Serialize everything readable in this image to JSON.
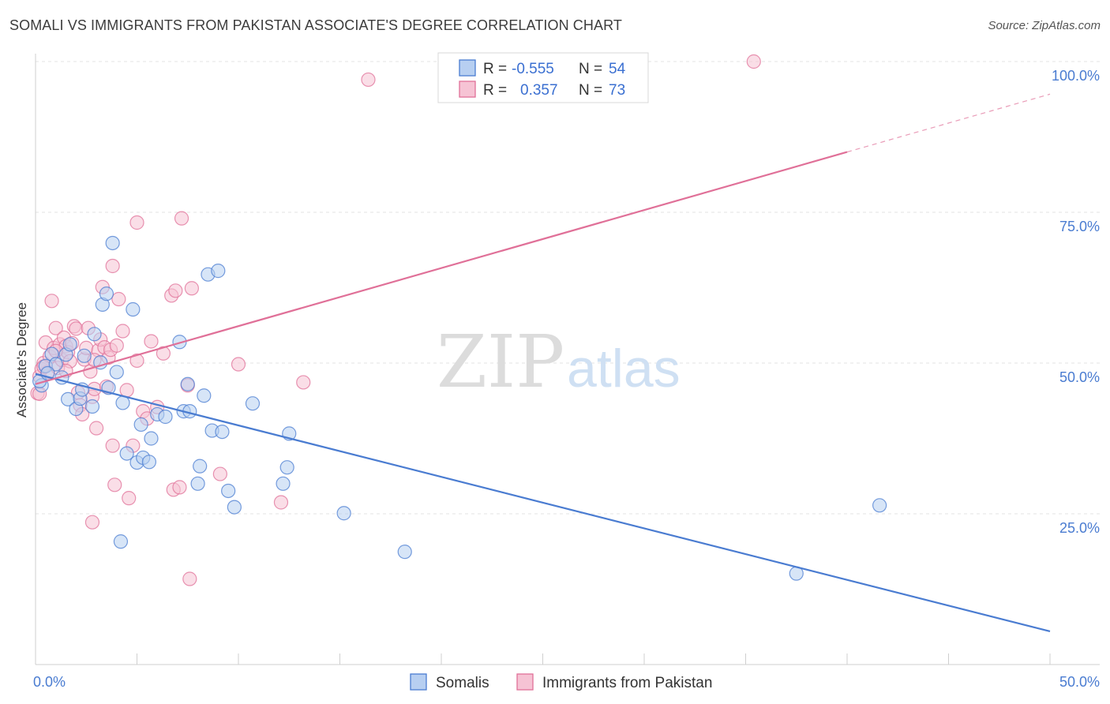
{
  "title": "SOMALI VS IMMIGRANTS FROM PAKISTAN ASSOCIATE'S DEGREE CORRELATION CHART",
  "source": "Source: ZipAtlas.com",
  "watermark": {
    "zip": "ZIP",
    "atlas": "atlas"
  },
  "colors": {
    "blue": "#4a7cd1",
    "pink": "#e07098",
    "blue_fill": "#b7cff1",
    "pink_fill": "#f6c3d4"
  },
  "legend": {
    "rows": [
      {
        "r_label": "R =",
        "r_value": "-0.555",
        "n_label": "N =",
        "n_value": "54"
      },
      {
        "r_label": "R =",
        "r_value": "0.357",
        "n_label": "N =",
        "n_value": "73"
      }
    ]
  },
  "bottom_legend": [
    "Somalis",
    "Immigrants from Pakistan"
  ],
  "chart_data": {
    "type": "scatter",
    "title": "SOMALI VS IMMIGRANTS FROM PAKISTAN ASSOCIATE'S DEGREE CORRELATION CHART",
    "xlabel": "",
    "ylabel": "Associate's Degree",
    "xlim": [
      0,
      50
    ],
    "ylim": [
      0,
      100
    ],
    "x_tick_labels": [
      "0.0%",
      "50.0%"
    ],
    "y_tick_labels": [
      "25.0%",
      "50.0%",
      "75.0%",
      "100.0%"
    ],
    "grid": true,
    "legend_position": "top-center",
    "series": [
      {
        "name": "Somalis",
        "r": -0.555,
        "n": 54,
        "trend": {
          "x": [
            0,
            50
          ],
          "y": [
            48.2,
            5.5
          ]
        },
        "points": [
          [
            0.3,
            46.3
          ],
          [
            0.5,
            49.5
          ],
          [
            0.8,
            51.5
          ],
          [
            1.0,
            49.8
          ],
          [
            1.3,
            47.6
          ],
          [
            1.5,
            51.4
          ],
          [
            1.7,
            53.1
          ],
          [
            1.6,
            44.0
          ],
          [
            2.0,
            42.4
          ],
          [
            2.2,
            44.1
          ],
          [
            2.4,
            51.2
          ],
          [
            2.3,
            45.6
          ],
          [
            2.8,
            42.8
          ],
          [
            2.9,
            54.8
          ],
          [
            3.2,
            50.1
          ],
          [
            3.3,
            59.7
          ],
          [
            3.5,
            61.5
          ],
          [
            3.6,
            45.9
          ],
          [
            3.8,
            69.9
          ],
          [
            4.0,
            48.5
          ],
          [
            4.2,
            20.4
          ],
          [
            4.3,
            43.4
          ],
          [
            4.5,
            35.0
          ],
          [
            4.8,
            58.9
          ],
          [
            5.0,
            33.5
          ],
          [
            5.2,
            39.8
          ],
          [
            5.3,
            34.3
          ],
          [
            5.6,
            33.6
          ],
          [
            5.7,
            37.5
          ],
          [
            6.0,
            41.5
          ],
          [
            6.4,
            41.1
          ],
          [
            7.1,
            53.5
          ],
          [
            7.3,
            42.0
          ],
          [
            7.5,
            46.5
          ],
          [
            7.6,
            42.0
          ],
          [
            8.0,
            30.0
          ],
          [
            8.1,
            32.9
          ],
          [
            8.3,
            44.6
          ],
          [
            8.5,
            64.7
          ],
          [
            8.7,
            38.8
          ],
          [
            9.0,
            65.3
          ],
          [
            9.2,
            38.6
          ],
          [
            9.5,
            28.8
          ],
          [
            9.8,
            26.1
          ],
          [
            10.7,
            43.3
          ],
          [
            12.2,
            30.0
          ],
          [
            12.4,
            32.7
          ],
          [
            12.5,
            38.3
          ],
          [
            15.2,
            25.1
          ],
          [
            18.2,
            18.7
          ],
          [
            37.5,
            15.1
          ],
          [
            41.6,
            26.4
          ],
          [
            0.2,
            47.0
          ],
          [
            0.6,
            48.3
          ]
        ]
      },
      {
        "name": "Immigrants from Pakistan",
        "r": 0.357,
        "n": 73,
        "trend": {
          "x": [
            0,
            40
          ],
          "y": [
            46.5,
            85.0
          ]
        },
        "trend_dashed": {
          "x": [
            40,
            50
          ],
          "y": [
            85.0,
            94.6
          ]
        },
        "points": [
          [
            0.1,
            45.0
          ],
          [
            0.2,
            47.8
          ],
          [
            0.3,
            49.0
          ],
          [
            0.4,
            50.0
          ],
          [
            0.5,
            53.4
          ],
          [
            0.6,
            48.5
          ],
          [
            0.7,
            51.1
          ],
          [
            0.8,
            60.3
          ],
          [
            0.9,
            52.5
          ],
          [
            1.0,
            55.8
          ],
          [
            1.1,
            49.2
          ],
          [
            1.2,
            53.1
          ],
          [
            1.3,
            50.5
          ],
          [
            1.4,
            54.2
          ],
          [
            1.5,
            52.8
          ],
          [
            1.6,
            51.8
          ],
          [
            1.7,
            50.3
          ],
          [
            1.8,
            53.3
          ],
          [
            1.9,
            56.1
          ],
          [
            2.0,
            55.7
          ],
          [
            2.1,
            45.1
          ],
          [
            2.2,
            43.0
          ],
          [
            2.3,
            41.5
          ],
          [
            2.4,
            50.6
          ],
          [
            2.5,
            52.5
          ],
          [
            2.6,
            55.8
          ],
          [
            2.7,
            48.6
          ],
          [
            2.8,
            44.4
          ],
          [
            2.9,
            45.7
          ],
          [
            3.0,
            39.2
          ],
          [
            3.1,
            52.1
          ],
          [
            3.2,
            53.9
          ],
          [
            3.3,
            62.6
          ],
          [
            3.4,
            52.6
          ],
          [
            3.5,
            46.1
          ],
          [
            3.6,
            50.9
          ],
          [
            3.7,
            52.2
          ],
          [
            3.8,
            66.1
          ],
          [
            3.9,
            29.8
          ],
          [
            4.0,
            52.9
          ],
          [
            4.1,
            60.6
          ],
          [
            4.3,
            55.3
          ],
          [
            4.5,
            45.5
          ],
          [
            4.6,
            27.6
          ],
          [
            4.8,
            36.3
          ],
          [
            5.0,
            50.4
          ],
          [
            5.0,
            73.3
          ],
          [
            5.3,
            42.0
          ],
          [
            5.5,
            40.8
          ],
          [
            5.7,
            53.6
          ],
          [
            6.0,
            42.7
          ],
          [
            6.3,
            51.6
          ],
          [
            6.7,
            61.2
          ],
          [
            6.8,
            29.0
          ],
          [
            6.9,
            62.0
          ],
          [
            7.1,
            29.4
          ],
          [
            7.2,
            74.0
          ],
          [
            7.5,
            46.3
          ],
          [
            7.7,
            62.4
          ],
          [
            7.6,
            14.2
          ],
          [
            9.1,
            31.6
          ],
          [
            10.0,
            49.8
          ],
          [
            12.1,
            26.9
          ],
          [
            13.2,
            46.8
          ],
          [
            16.4,
            97.0
          ],
          [
            35.4,
            100.0
          ],
          [
            2.8,
            23.6
          ],
          [
            3.8,
            36.3
          ],
          [
            1.0,
            52.0
          ],
          [
            1.5,
            48.7
          ],
          [
            0.4,
            49.4
          ],
          [
            2.9,
            50.5
          ],
          [
            0.2,
            44.9
          ]
        ]
      }
    ]
  }
}
